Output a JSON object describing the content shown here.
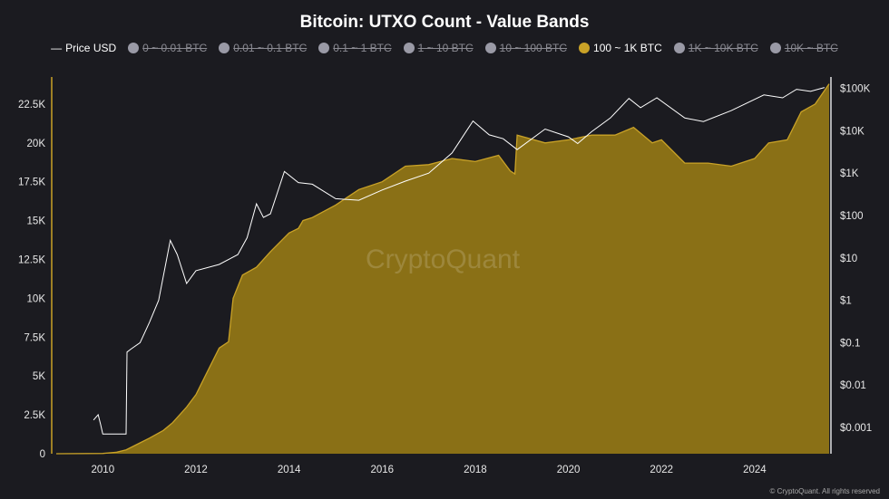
{
  "chart_data": {
    "type": "area",
    "title": "Bitcoin: UTXO Count - Value Bands",
    "legend": [
      {
        "label": "Price USD",
        "active": true,
        "color": "#ffffff",
        "marker": "line"
      },
      {
        "label": "0 ~ 0.01 BTC",
        "active": false,
        "color": "#9a9aa6"
      },
      {
        "label": "0.01 ~ 0.1 BTC",
        "active": false,
        "color": "#9a9aa6"
      },
      {
        "label": "0.1 ~ 1 BTC",
        "active": false,
        "color": "#9a9aa6"
      },
      {
        "label": "1 ~ 10 BTC",
        "active": false,
        "color": "#9a9aa6"
      },
      {
        "label": "10 ~ 100 BTC",
        "active": false,
        "color": "#9a9aa6"
      },
      {
        "label": "100 ~ 1K BTC",
        "active": true,
        "color": "#c9a227"
      },
      {
        "label": "1K ~ 10K BTC",
        "active": false,
        "color": "#9a9aa6"
      },
      {
        "label": "10K ~ BTC",
        "active": false,
        "color": "#9a9aa6"
      }
    ],
    "legend_position": "top",
    "grid": false,
    "x_ticks": [
      "2010",
      "2012",
      "2014",
      "2016",
      "2018",
      "2020",
      "2022",
      "2024"
    ],
    "xlim": [
      2009.0,
      2025.6
    ],
    "y_left": {
      "ticks": [
        "0",
        "2.5K",
        "5K",
        "7.5K",
        "10K",
        "12.5K",
        "15K",
        "17.5K",
        "20K",
        "22.5K"
      ],
      "ylim": [
        0,
        24500
      ]
    },
    "y_right": {
      "scale": "log",
      "ticks": [
        "$0.001",
        "$0.01",
        "$0.1",
        "$1",
        "$10",
        "$100",
        "$1K",
        "$10K",
        "$100K"
      ]
    },
    "series": [
      {
        "name": "100 ~ 1K BTC",
        "axis": "left",
        "type": "area",
        "color": "#c9a227",
        "fill": "#8a7016",
        "x": [
          2009.0,
          2010.0,
          2010.3,
          2010.5,
          2010.8,
          2011.0,
          2011.3,
          2011.5,
          2011.8,
          2012.0,
          2012.2,
          2012.5,
          2012.7,
          2012.8,
          2013.0,
          2013.3,
          2013.6,
          2014.0,
          2014.2,
          2014.3,
          2014.5,
          2015.0,
          2015.5,
          2016.0,
          2016.5,
          2017.0,
          2017.5,
          2018.0,
          2018.5,
          2018.75,
          2018.85,
          2018.9,
          2019.5,
          2020.0,
          2020.5,
          2021.0,
          2021.4,
          2021.8,
          2022.0,
          2022.5,
          2023.0,
          2023.5,
          2024.0,
          2024.3,
          2024.7,
          2025.0,
          2025.3,
          2025.6
        ],
        "y": [
          0,
          20,
          100,
          250,
          700,
          1000,
          1500,
          2000,
          3000,
          3800,
          5000,
          6800,
          7200,
          10000,
          11500,
          12000,
          13000,
          14200,
          14500,
          15000,
          15200,
          16000,
          17000,
          17500,
          18500,
          18600,
          19000,
          18800,
          19200,
          18200,
          18000,
          20500,
          20000,
          20200,
          20500,
          20500,
          21000,
          20000,
          20200,
          18700,
          18700,
          18500,
          19000,
          20000,
          20200,
          22000,
          22500,
          23800
        ]
      },
      {
        "name": "Price USD",
        "axis": "right",
        "type": "line",
        "color": "#ffffff",
        "x": [
          2009.8,
          2009.9,
          2009.95,
          2010.0,
          2010.5,
          2010.52,
          2010.6,
          2010.8,
          2011.0,
          2011.2,
          2011.45,
          2011.6,
          2011.8,
          2012.0,
          2012.5,
          2012.9,
          2013.1,
          2013.3,
          2013.45,
          2013.6,
          2013.9,
          2014.2,
          2014.5,
          2015.0,
          2015.5,
          2016.0,
          2016.5,
          2017.0,
          2017.5,
          2017.95,
          2018.3,
          2018.6,
          2018.9,
          2019.5,
          2020.0,
          2020.2,
          2020.5,
          2020.9,
          2021.3,
          2021.55,
          2021.9,
          2022.5,
          2022.9,
          2023.5,
          2024.2,
          2024.6,
          2024.9,
          2025.2,
          2025.5
        ],
        "y": [
          0.0015,
          0.002,
          0.0012,
          0.0007,
          0.0007,
          0.06,
          0.07,
          0.1,
          0.3,
          1,
          26,
          12,
          2.5,
          5,
          7,
          12,
          30,
          190,
          90,
          110,
          1100,
          600,
          550,
          250,
          230,
          400,
          650,
          1000,
          3000,
          17000,
          8000,
          6500,
          3600,
          11000,
          7200,
          5000,
          9500,
          20000,
          58000,
          35000,
          60000,
          20000,
          16500,
          30000,
          70000,
          60000,
          95000,
          85000,
          105000
        ]
      }
    ]
  },
  "watermark": "CryptoQuant",
  "copyright": "© CryptoQuant. All rights reserved"
}
